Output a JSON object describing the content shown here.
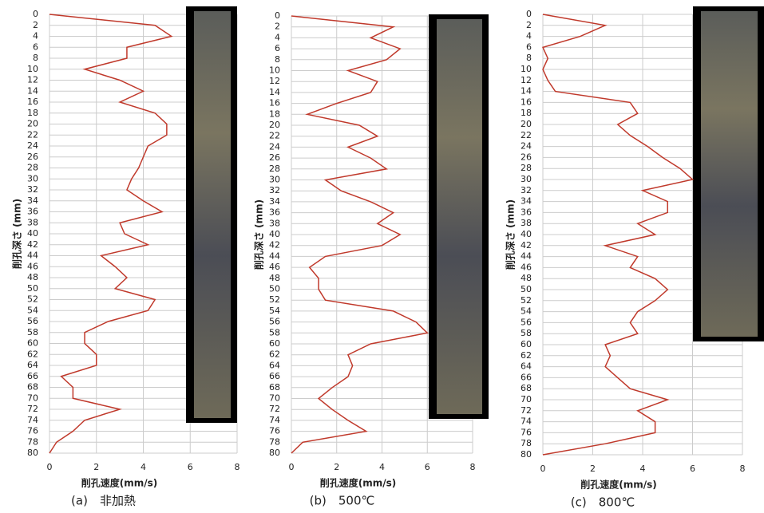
{
  "chart_data": [
    {
      "type": "line",
      "caption": "(a)　非加熱",
      "xlabel": "削孔速度(mm/s)",
      "ylabel": "削孔深さ (mm)",
      "color": "#c0392b",
      "grid": true,
      "xlim": [
        0,
        8
      ],
      "xticks": [
        0,
        2,
        4,
        6,
        8
      ],
      "ylim": [
        0,
        80
      ],
      "yticks": [
        0,
        2,
        4,
        6,
        8,
        10,
        12,
        14,
        16,
        18,
        20,
        22,
        24,
        26,
        28,
        30,
        32,
        34,
        36,
        38,
        40,
        42,
        44,
        46,
        48,
        50,
        52,
        54,
        56,
        58,
        60,
        62,
        64,
        66,
        68,
        70,
        72,
        74,
        76,
        78,
        80
      ],
      "x": [
        0,
        4.5,
        5.2,
        3.3,
        3.3,
        1.5,
        3.0,
        4,
        3,
        4.5,
        5,
        5,
        4.2,
        4,
        3.8,
        3.5,
        3.3,
        4,
        4.8,
        3,
        3.2,
        4.2,
        2.2,
        2.8,
        3.3,
        2.8,
        4.5,
        4.2,
        2.5,
        1.5,
        1.5,
        2,
        2,
        0.5,
        1,
        1,
        3,
        1.5,
        1,
        0.3,
        0
      ],
      "y": [
        0,
        2,
        4,
        6,
        8,
        10,
        12,
        14,
        16,
        18,
        20,
        22,
        24,
        26,
        28,
        30,
        32,
        34,
        36,
        38,
        40,
        42,
        44,
        46,
        48,
        50,
        52,
        54,
        56,
        58,
        60,
        62,
        64,
        66,
        68,
        70,
        72,
        74,
        76,
        78,
        80
      ]
    },
    {
      "type": "line",
      "caption": "(b)　500℃",
      "xlabel": "削孔速度(mm/s)",
      "ylabel": "削孔深さ (mm)",
      "color": "#c0392b",
      "grid": true,
      "xlim": [
        0,
        8
      ],
      "xticks": [
        0,
        2,
        4,
        6,
        8
      ],
      "ylim": [
        0,
        80
      ],
      "yticks": [
        0,
        2,
        4,
        6,
        8,
        10,
        12,
        14,
        16,
        18,
        20,
        22,
        24,
        26,
        28,
        30,
        32,
        34,
        36,
        38,
        40,
        42,
        44,
        46,
        48,
        50,
        52,
        54,
        56,
        58,
        60,
        62,
        64,
        66,
        68,
        70,
        72,
        74,
        76,
        78,
        80
      ],
      "x": [
        0,
        4.5,
        3.5,
        4.8,
        4.2,
        2.5,
        3.8,
        3.5,
        2,
        0.7,
        3,
        3.8,
        2.5,
        3.5,
        4.2,
        1.5,
        2.2,
        3.5,
        4.5,
        3.8,
        4.8,
        4,
        1.5,
        0.8,
        1.2,
        1.2,
        1.5,
        4.5,
        5.5,
        6,
        3.5,
        2.5,
        2.7,
        2.5,
        1.8,
        1.2,
        1.8,
        2.5,
        3.3,
        0.5,
        0
      ],
      "y": [
        0,
        2,
        4,
        6,
        8,
        10,
        12,
        14,
        16,
        18,
        20,
        22,
        24,
        26,
        28,
        30,
        32,
        34,
        36,
        38,
        40,
        42,
        44,
        46,
        48,
        50,
        52,
        54,
        56,
        58,
        60,
        62,
        64,
        66,
        68,
        70,
        72,
        74,
        76,
        78,
        80
      ]
    },
    {
      "type": "line",
      "caption": "(c)　800℃",
      "xlabel": "削孔速度(mm/s)",
      "ylabel": "削孔深さ (mm)",
      "color": "#c0392b",
      "grid": true,
      "xlim": [
        0,
        8
      ],
      "xticks": [
        0,
        2,
        4,
        6,
        8
      ],
      "ylim": [
        0,
        80
      ],
      "yticks": [
        0,
        2,
        4,
        6,
        8,
        10,
        12,
        14,
        16,
        18,
        20,
        22,
        24,
        26,
        28,
        30,
        32,
        34,
        36,
        38,
        40,
        42,
        44,
        46,
        48,
        50,
        52,
        54,
        56,
        58,
        60,
        62,
        64,
        66,
        68,
        70,
        72,
        74,
        76,
        78,
        80
      ],
      "x": [
        0,
        2.5,
        1.5,
        0,
        0.2,
        0,
        0.2,
        0.5,
        3.5,
        3.8,
        3,
        3.5,
        4.2,
        4.8,
        5.5,
        6,
        4,
        5,
        5,
        3.8,
        4.5,
        2.5,
        3.8,
        3.5,
        4.5,
        5,
        4.5,
        3.8,
        3.5,
        3.8,
        2.5,
        2.7,
        2.5,
        3,
        3.5,
        5,
        3.8,
        4.5,
        4.5,
        2.5,
        0
      ],
      "y": [
        0,
        2,
        4,
        6,
        8,
        10,
        12,
        14,
        16,
        18,
        20,
        22,
        24,
        26,
        28,
        30,
        32,
        34,
        36,
        38,
        40,
        42,
        44,
        46,
        48,
        50,
        52,
        54,
        56,
        58,
        60,
        62,
        64,
        66,
        68,
        70,
        72,
        74,
        76,
        78,
        80
      ]
    }
  ]
}
